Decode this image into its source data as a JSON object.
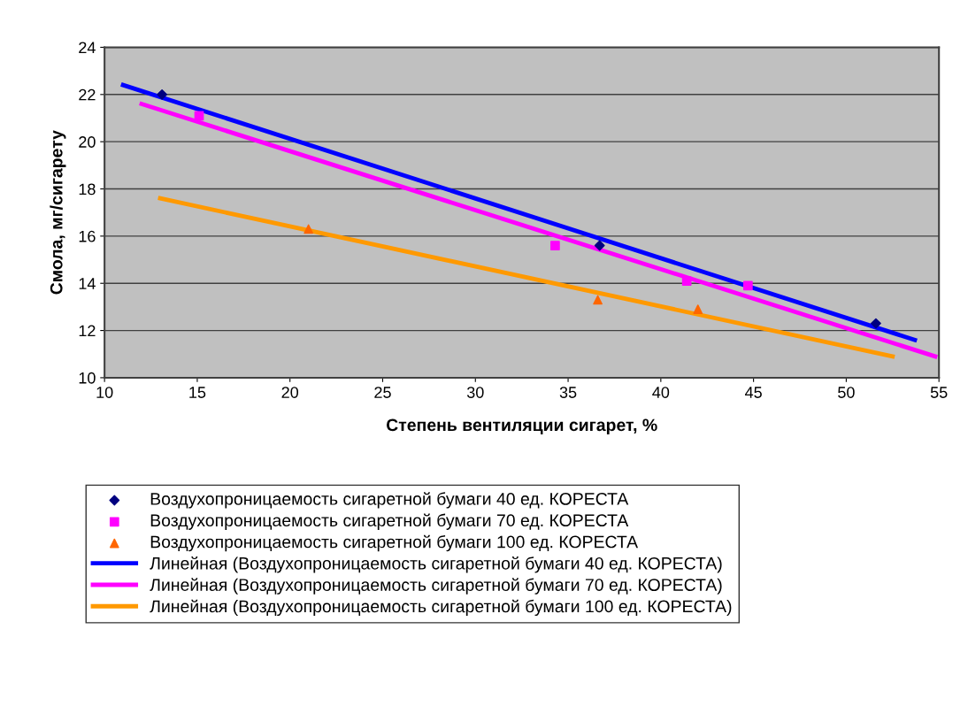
{
  "chart_data": {
    "type": "scatter",
    "xlabel": "Степень вентиляции сигарет, %",
    "ylabel": "Смола, мг/сигарету",
    "xlim": [
      10,
      55
    ],
    "xticks": [
      10,
      15,
      20,
      25,
      30,
      35,
      40,
      45,
      50,
      55
    ],
    "ylim": [
      10,
      24
    ],
    "yticks": [
      10,
      12,
      14,
      16,
      18,
      20,
      22,
      24
    ],
    "grid": "y",
    "legend": "bottom",
    "series": [
      {
        "name": "Воздухопроницаемость сигаретной бумаги 40 ед. КОРЕСТА",
        "color": "#000080",
        "marker": "diamond",
        "x": [
          13.1,
          36.7,
          51.6
        ],
        "values": [
          22.0,
          15.6,
          12.3
        ]
      },
      {
        "name": "Воздухопроницаемость сигаретной бумаги 70 ед. КОРЕСТА",
        "color": "#ff00ff",
        "marker": "square",
        "x": [
          15.1,
          34.3,
          41.4,
          44.7
        ],
        "values": [
          21.1,
          15.6,
          14.1,
          13.9
        ]
      },
      {
        "name": "Воздухопроницаемость сигаретной бумаги 100 ед. КОРЕСТА",
        "color": "#ff6600",
        "marker": "triangle",
        "x": [
          21.0,
          36.6,
          42.0
        ],
        "values": [
          16.3,
          13.3,
          12.9
        ]
      },
      {
        "name": "Линейная (Воздухопроницаемость сигаретной бумаги 40 ед. КОРЕСТА)",
        "type": "line",
        "color": "#0000ff",
        "x": [
          11.0,
          53.7
        ],
        "values": [
          22.4,
          11.6
        ]
      },
      {
        "name": "Линейная (Воздухопроницаемость сигаретной бумаги 70 ед. КОРЕСТА)",
        "type": "line",
        "color": "#ff00ff",
        "x": [
          12.0,
          54.8
        ],
        "values": [
          21.6,
          10.9
        ]
      },
      {
        "name": "Линейная (Воздухопроницаемость сигаретной бумаги 100 ед. КОРЕСТА)",
        "type": "line",
        "color": "#ff9900",
        "x": [
          13.0,
          52.5
        ],
        "values": [
          17.6,
          10.9
        ]
      }
    ]
  }
}
